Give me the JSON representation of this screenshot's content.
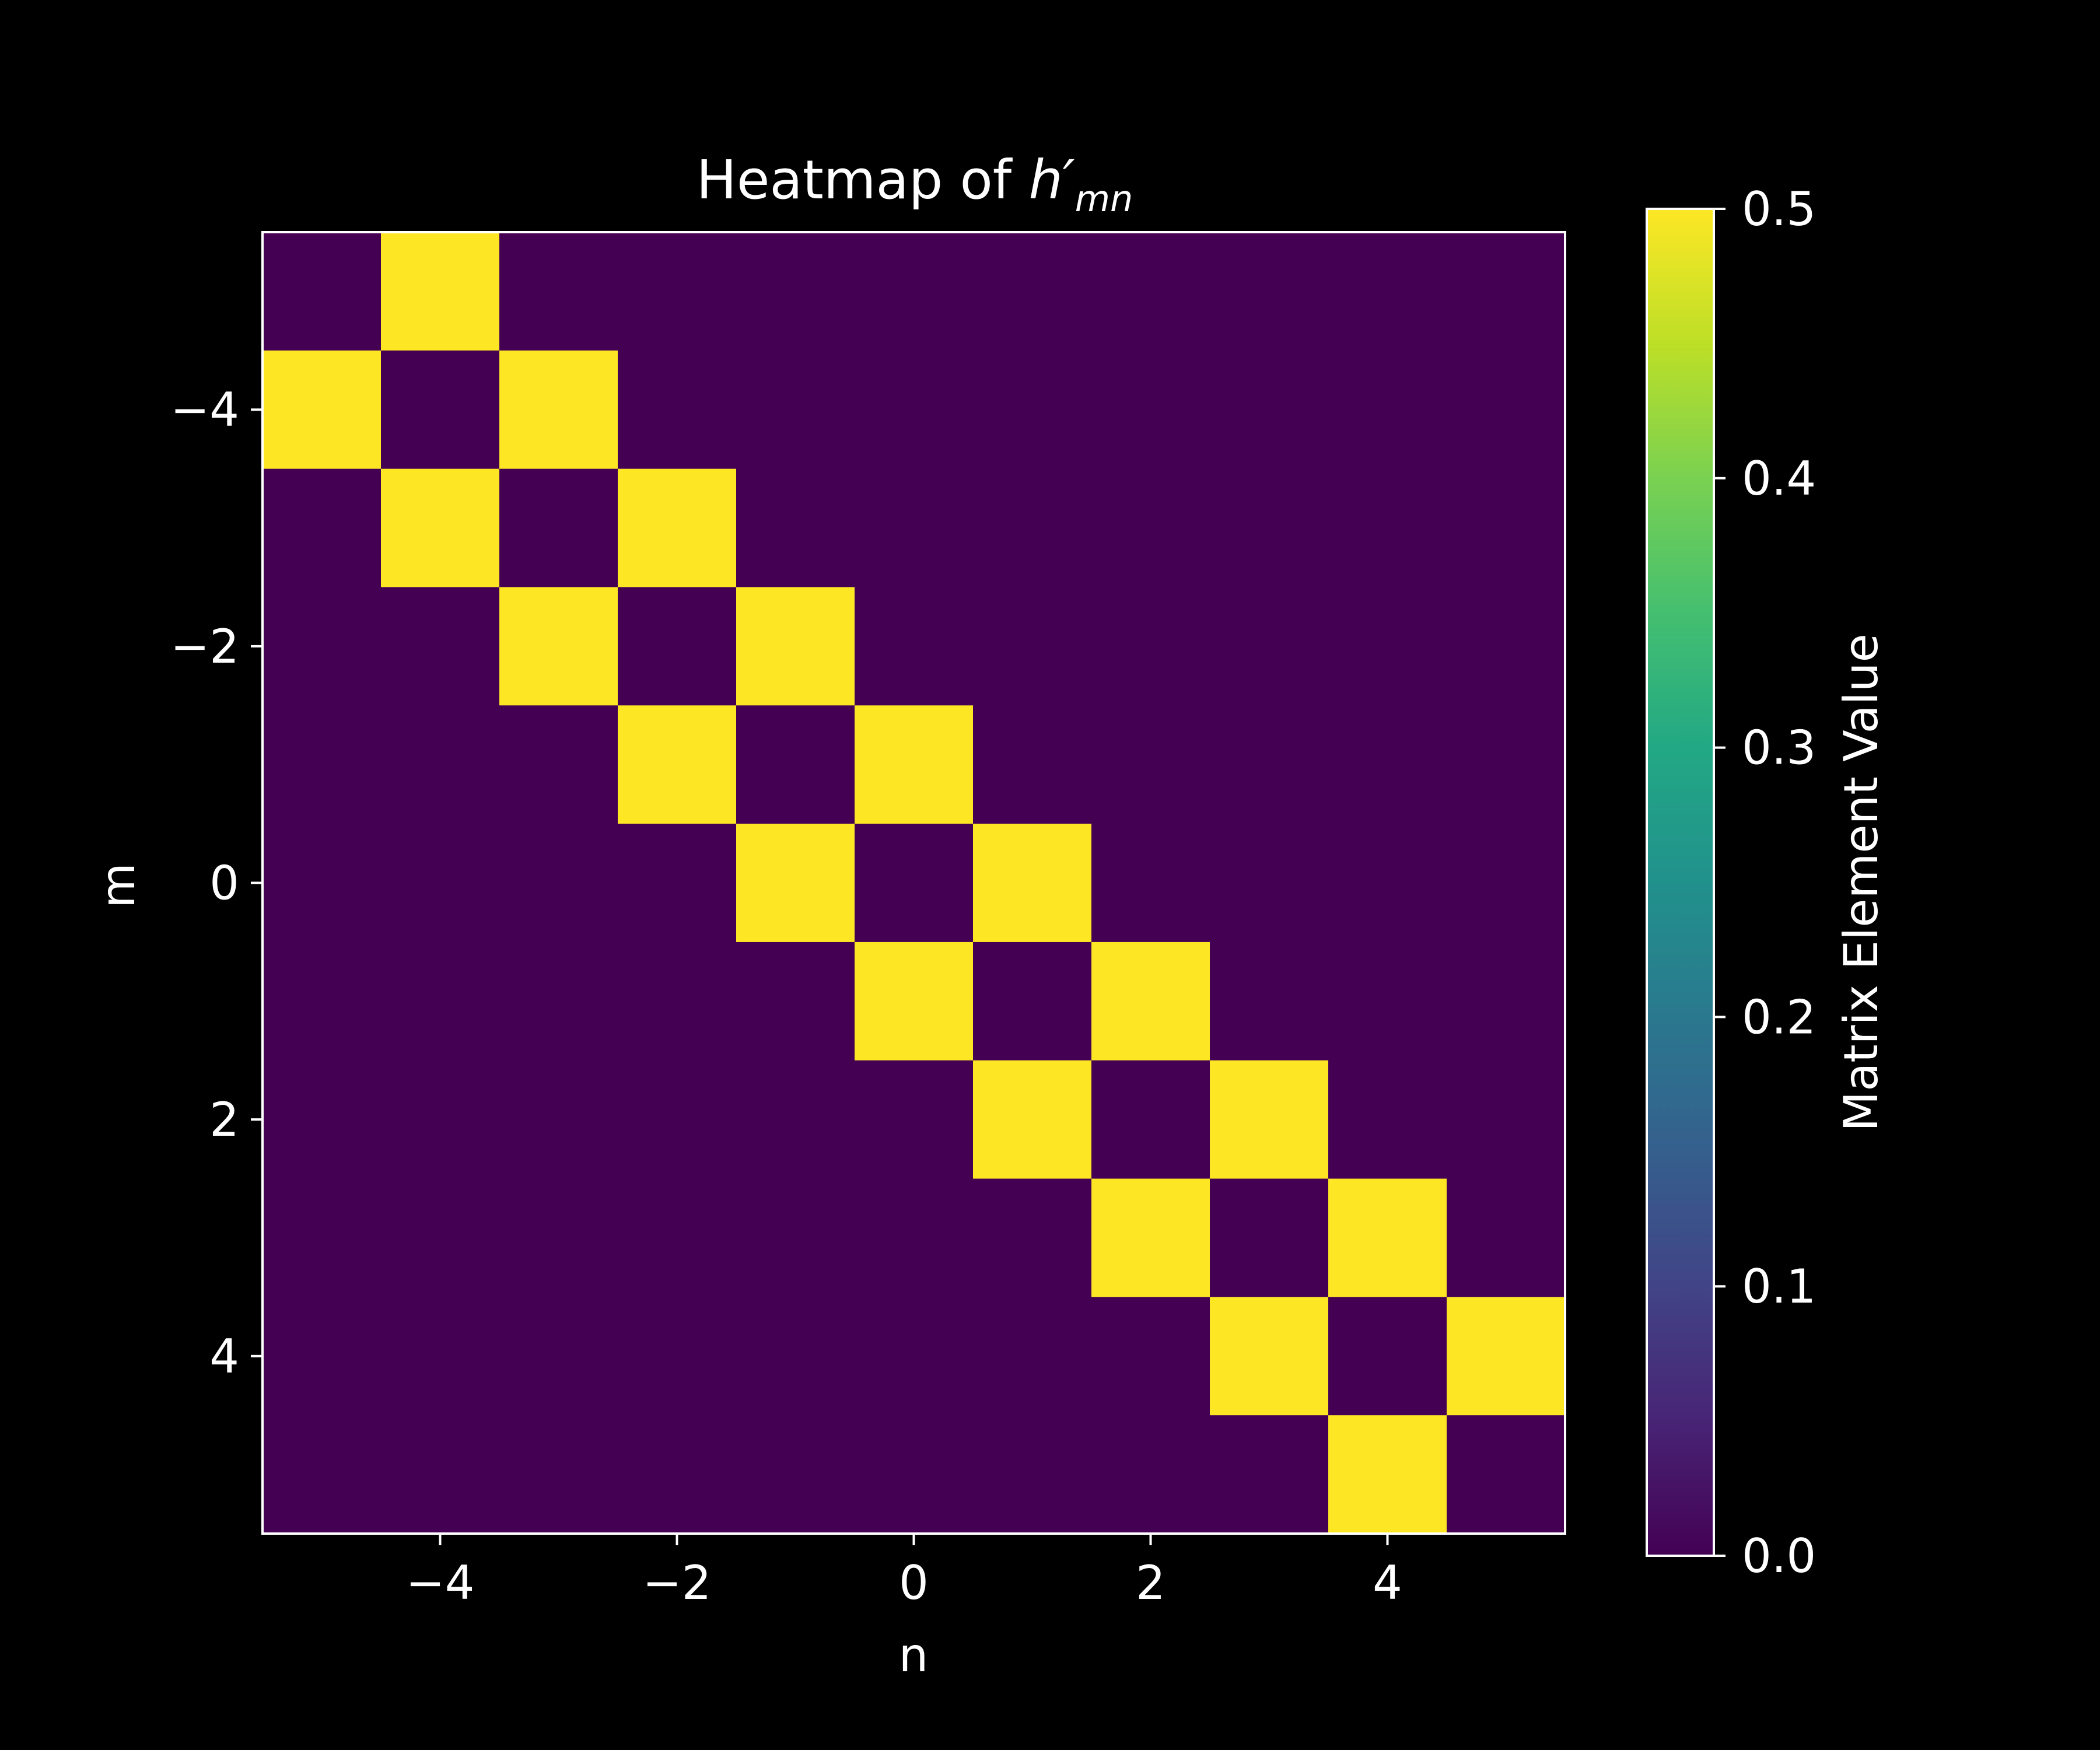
{
  "chart_data": {
    "type": "heatmap",
    "title": "Heatmap of h′mn",
    "title_parts": {
      "prefix": "Heatmap of ",
      "symbol": "h′",
      "subscript": "mn"
    },
    "xlabel": "n",
    "ylabel": "m",
    "x_ticks": [
      "−4",
      "−2",
      "0",
      "2",
      "4"
    ],
    "y_ticks": [
      "−4",
      "−2",
      "0",
      "2",
      "4"
    ],
    "x_tick_values": [
      -4,
      -2,
      0,
      2,
      4
    ],
    "y_tick_values": [
      -4,
      -2,
      0,
      2,
      4
    ],
    "x_range": [
      -5,
      5
    ],
    "y_range": [
      -5,
      5
    ],
    "y_inverted": true,
    "matrix_indices": [
      -5,
      -4,
      -3,
      -2,
      -1,
      0,
      1,
      2,
      3,
      4,
      5
    ],
    "values": [
      [
        0,
        0.5,
        0,
        0,
        0,
        0,
        0,
        0,
        0,
        0,
        0
      ],
      [
        0.5,
        0,
        0.5,
        0,
        0,
        0,
        0,
        0,
        0,
        0,
        0
      ],
      [
        0,
        0.5,
        0,
        0.5,
        0,
        0,
        0,
        0,
        0,
        0,
        0
      ],
      [
        0,
        0,
        0.5,
        0,
        0.5,
        0,
        0,
        0,
        0,
        0,
        0
      ],
      [
        0,
        0,
        0,
        0.5,
        0,
        0.5,
        0,
        0,
        0,
        0,
        0
      ],
      [
        0,
        0,
        0,
        0,
        0.5,
        0,
        0.5,
        0,
        0,
        0,
        0
      ],
      [
        0,
        0,
        0,
        0,
        0,
        0.5,
        0,
        0.5,
        0,
        0,
        0
      ],
      [
        0,
        0,
        0,
        0,
        0,
        0,
        0.5,
        0,
        0.5,
        0,
        0
      ],
      [
        0,
        0,
        0,
        0,
        0,
        0,
        0,
        0.5,
        0,
        0.5,
        0
      ],
      [
        0,
        0,
        0,
        0,
        0,
        0,
        0,
        0,
        0.5,
        0,
        0.5
      ],
      [
        0,
        0,
        0,
        0,
        0,
        0,
        0,
        0,
        0,
        0.5,
        0
      ]
    ],
    "colorbar": {
      "label": "Matrix Element Value",
      "range": [
        0.0,
        0.5
      ],
      "ticks": [
        "0.0",
        "0.1",
        "0.2",
        "0.3",
        "0.4",
        "0.5"
      ],
      "tick_values": [
        0.0,
        0.1,
        0.2,
        0.3,
        0.4,
        0.5
      ],
      "colormap": "viridis"
    },
    "grid": false,
    "colors": {
      "background": "#000000",
      "low": "#440154",
      "high": "#fde725",
      "axes": "#ffffff"
    }
  }
}
